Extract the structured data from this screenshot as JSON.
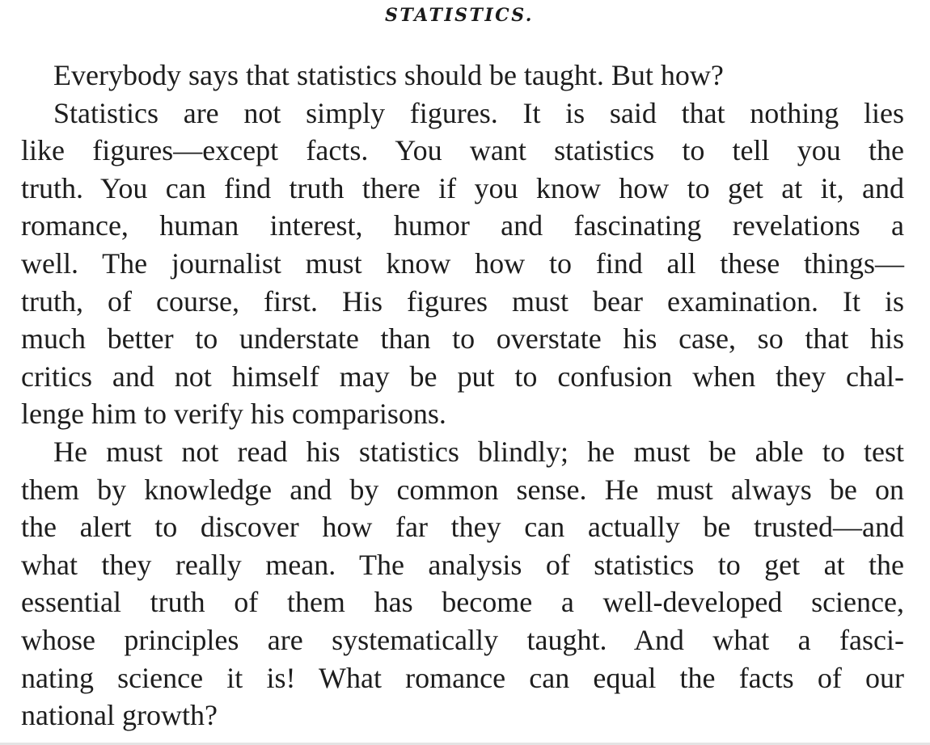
{
  "page": {
    "title": "STATISTICS.",
    "paragraphs": [
      {
        "lines": [
          "Everybody says that statistics should be taught.  But how?",
          "Statistics are not simply figures.  It is said that nothing lies",
          "like figures—except facts.  You want statistics to tell you the",
          "truth.  You can find truth there if you know how to get at it, and",
          "romance, human interest, humor and fascinating revelations a",
          "well.  The journalist must know how to find all these things—",
          "truth, of course, first.  His figures must bear examination.  It is",
          "much better to understate than to overstate his case, so that his",
          "critics and not himself may be put to confusion when they chal-",
          "lenge him to verify his comparisons."
        ]
      },
      {
        "lines": [
          "He must not read his statistics blindly; he must be able to test",
          "them by knowledge and by common sense.  He must always be on",
          "the alert to discover how far they can actually be trusted—and",
          "what they really mean.  The analysis of statistics to get at the",
          "essential truth of them has become a well-developed science,",
          "whose principles are systematically taught.  And what a fasci-",
          "nating science it is!  What romance can equal the facts of our",
          "national growth?"
        ]
      }
    ]
  }
}
